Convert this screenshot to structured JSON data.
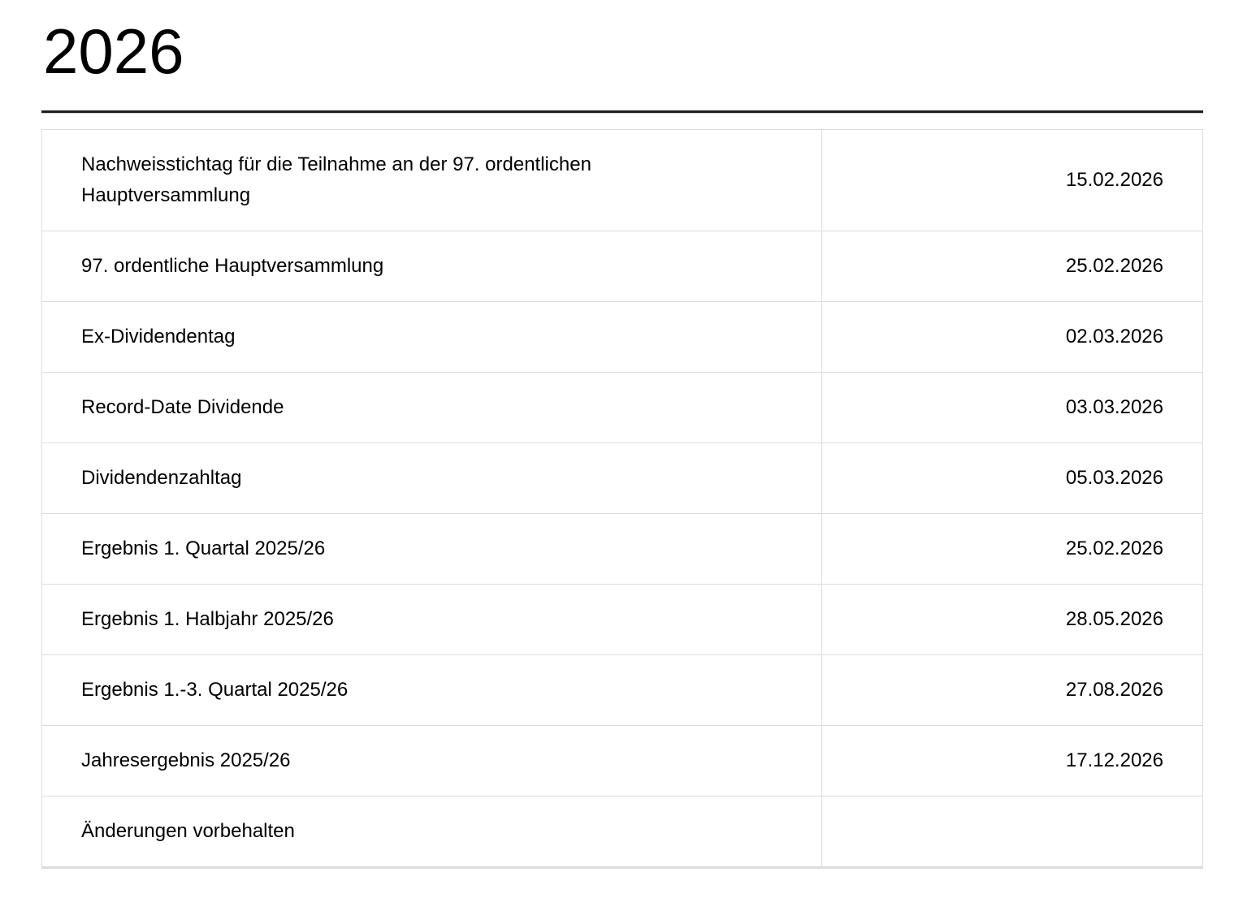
{
  "page": {
    "heading": "2026"
  },
  "calendar": {
    "rows": [
      {
        "label": "Nachweisstichtag für die Teilnahme an der 97. ordentlichen Hauptversammlung",
        "date": "15.02.2026"
      },
      {
        "label": "97. ordentliche Hauptversammlung",
        "date": "25.02.2026"
      },
      {
        "label": "Ex-Dividendentag",
        "date": "02.03.2026"
      },
      {
        "label": "Record-Date Dividende",
        "date": "03.03.2026"
      },
      {
        "label": "Dividendenzahltag",
        "date": "05.03.2026"
      },
      {
        "label": "Ergebnis 1. Quartal 2025/26",
        "date": "25.02.2026"
      },
      {
        "label": "Ergebnis 1. Halbjahr 2025/26",
        "date": "28.05.2026"
      },
      {
        "label": "Ergebnis 1.-3. Quartal 2025/26",
        "date": "27.08.2026"
      },
      {
        "label": "Jahresergebnis 2025/26",
        "date": "17.12.2026"
      },
      {
        "label": "Änderungen vorbehalten",
        "date": ""
      }
    ]
  },
  "colors": {
    "text": "#000000",
    "table_border": "#dcdcdc",
    "heading_rule": "#1f1f1f",
    "background": "#ffffff"
  }
}
